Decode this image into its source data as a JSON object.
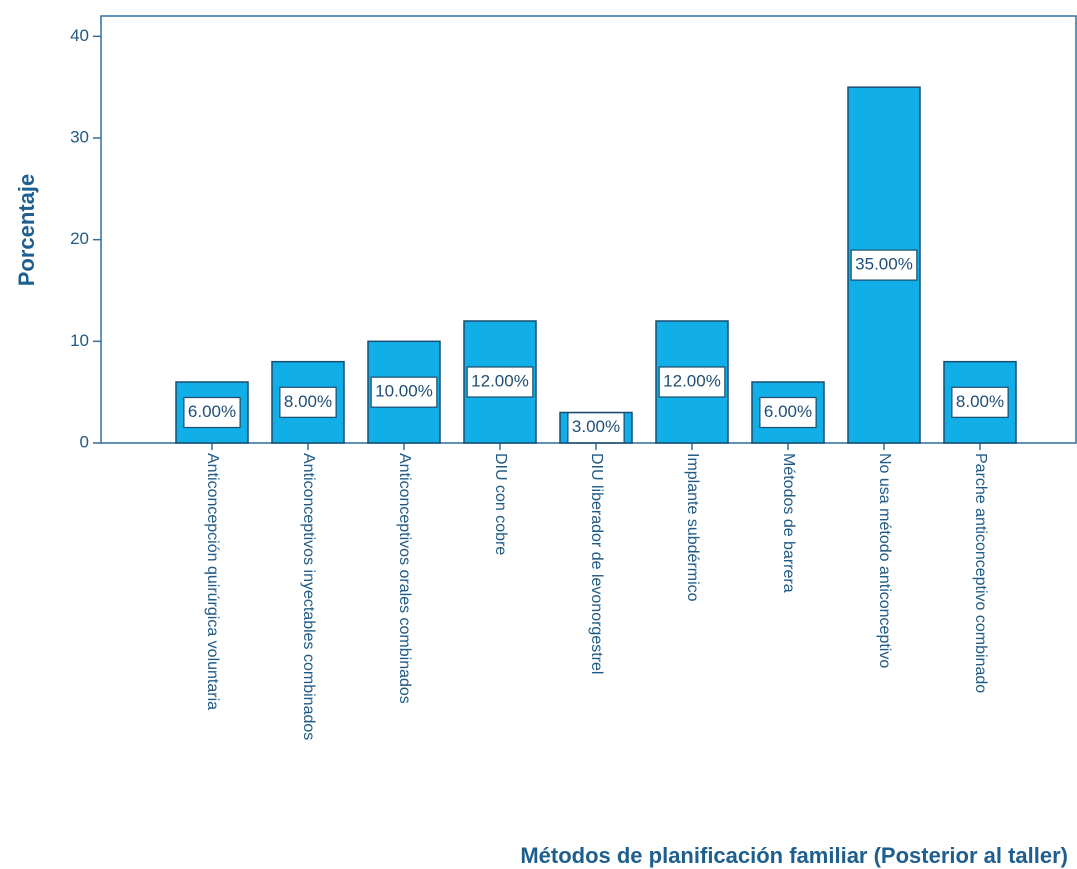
{
  "chart_data": {
    "type": "bar",
    "x_label": "Métodos de planificación familiar (Posterior al taller)",
    "y_label": "Porcentaje",
    "categories": [
      "Anticoncepción quirúrgica voluntaria",
      "Anticonceptivos inyectables combinados",
      "Anticonceptivos orales combinados",
      "DIU con cobre",
      "DIU liberador de levonorgestrel",
      "Implante subdérmico",
      "Métodos de barrera",
      "No usa método anticonceptivo",
      "Parche anticonceptivo combinado"
    ],
    "values": [
      6,
      8,
      10,
      12,
      3,
      12,
      6,
      35,
      8
    ],
    "value_labels": [
      "6.00%",
      "8.00%",
      "10.00%",
      "12.00%",
      "3.00%",
      "12.00%",
      "6.00%",
      "35.00%",
      "8.00%"
    ],
    "color": "#12aee8",
    "ylim": [
      0,
      42
    ],
    "yticks": [
      0,
      10,
      20,
      30,
      40
    ]
  }
}
